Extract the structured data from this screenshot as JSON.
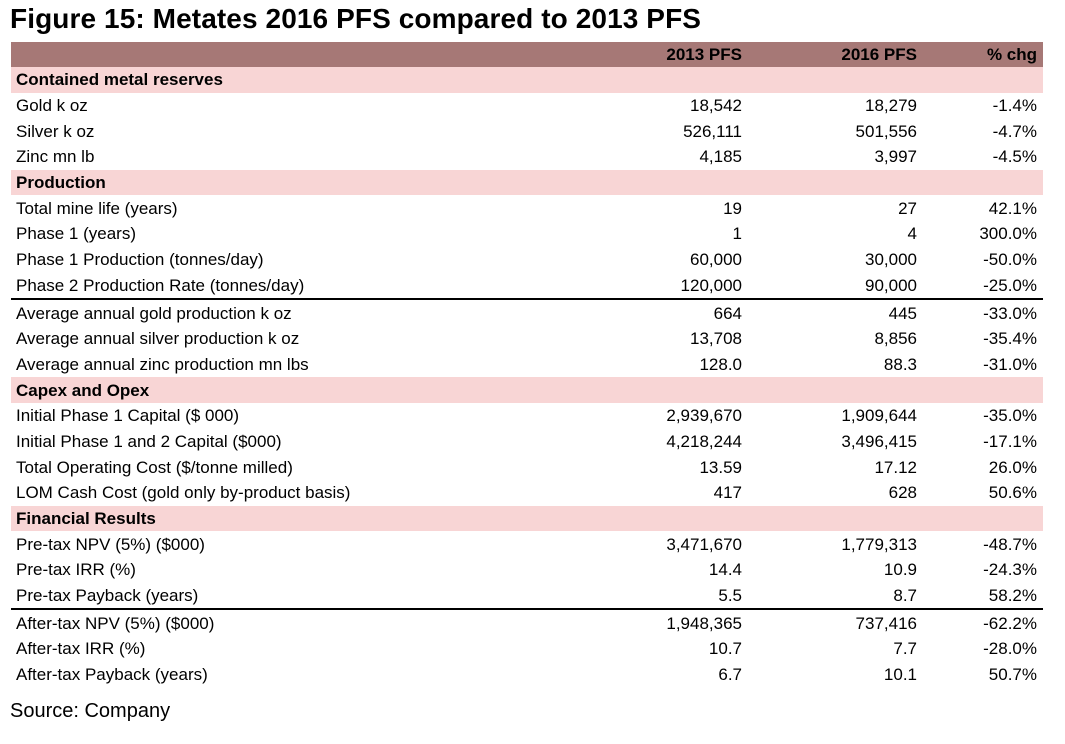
{
  "title": "Figure 15: Metates 2016 PFS compared to 2013 PFS",
  "header": {
    "label": "",
    "col1": "2013 PFS",
    "col2": "2016 PFS",
    "col3": "% chg"
  },
  "colors": {
    "header_bg": "#a67876",
    "section_bg": "#f8d5d5"
  },
  "rows": [
    {
      "type": "section",
      "label": "Contained metal reserves"
    },
    {
      "label": "Gold k oz",
      "v2013": "18,542",
      "v2016": "18,279",
      "chg": "-1.4%"
    },
    {
      "label": "Silver k oz",
      "v2013": "526,111",
      "v2016": "501,556",
      "chg": "-4.7%"
    },
    {
      "label": "Zinc mn lb",
      "v2013": "4,185",
      "v2016": "3,997",
      "chg": "-4.5%"
    },
    {
      "type": "section",
      "label": "Production"
    },
    {
      "label": "Total mine life (years)",
      "v2013": "19",
      "v2016": "27",
      "chg": "42.1%"
    },
    {
      "label": "Phase 1 (years)",
      "v2013": "1",
      "v2016": "4",
      "chg": "300.0%"
    },
    {
      "label": "Phase 1 Production (tonnes/day)",
      "v2013": "60,000",
      "v2016": "30,000",
      "chg": "-50.0%"
    },
    {
      "label": "Phase 2 Production Rate (tonnes/day)",
      "v2013": "120,000",
      "v2016": "90,000",
      "chg": "-25.0%",
      "rule": true
    },
    {
      "label": "Average annual gold production k oz",
      "v2013": "664",
      "v2016": "445",
      "chg": "-33.0%"
    },
    {
      "label": "Average annual silver production k oz",
      "v2013": "13,708",
      "v2016": "8,856",
      "chg": "-35.4%"
    },
    {
      "label": "Average annual zinc production mn lbs",
      "v2013": "128.0",
      "v2016": "88.3",
      "chg": "-31.0%"
    },
    {
      "type": "section",
      "label": "Capex and Opex"
    },
    {
      "label": "Initial Phase 1 Capital ($ 000)",
      "v2013": "2,939,670",
      "v2016": "1,909,644",
      "chg": "-35.0%"
    },
    {
      "label": "Initial Phase 1 and 2 Capital ($000)",
      "v2013": "4,218,244",
      "v2016": "3,496,415",
      "chg": "-17.1%"
    },
    {
      "label": "Total Operating Cost ($/tonne milled)",
      "v2013": "13.59",
      "v2016": "17.12",
      "chg": "26.0%"
    },
    {
      "label": "LOM Cash Cost (gold only by-product basis)",
      "v2013": "417",
      "v2016": "628",
      "chg": "50.6%"
    },
    {
      "type": "section",
      "label": "Financial Results"
    },
    {
      "label": "Pre-tax NPV (5%) ($000)",
      "v2013": "3,471,670",
      "v2016": "1,779,313",
      "chg": "-48.7%"
    },
    {
      "label": "Pre-tax IRR (%)",
      "v2013": "14.4",
      "v2016": "10.9",
      "chg": "-24.3%"
    },
    {
      "label": "Pre-tax Payback (years)",
      "v2013": "5.5",
      "v2016": "8.7",
      "chg": "58.2%",
      "rule": true
    },
    {
      "label": "After-tax NPV (5%) ($000)",
      "v2013": "1,948,365",
      "v2016": "737,416",
      "chg": "-62.2%"
    },
    {
      "label": "After-tax IRR (%)",
      "v2013": "10.7",
      "v2016": "7.7",
      "chg": "-28.0%"
    },
    {
      "label": "After-tax Payback (years)",
      "v2013": "6.7",
      "v2016": "10.1",
      "chg": "50.7%"
    }
  ],
  "source": "Source: Company"
}
